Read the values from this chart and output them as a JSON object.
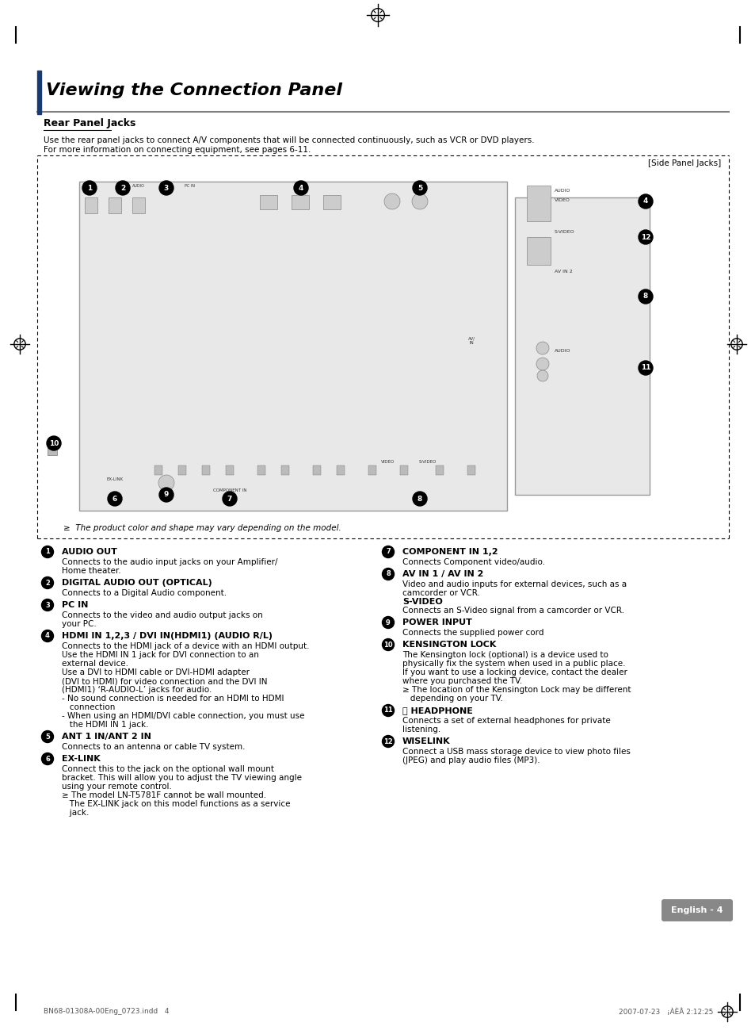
{
  "title": "Viewing the Connection Panel",
  "subtitle": "Rear Panel Jacks",
  "intro_text": "Use the rear panel jacks to connect A/V components that will be connected continuously, such as VCR or DVD players.\nFor more information on connecting equipment, see pages 6-11.",
  "side_panel_label": "[Side Panel Jacks]",
  "diagram_note": "≥  The product color and shape may vary depending on the model.",
  "items_left": [
    {
      "num": "1",
      "heading": "AUDIO OUT",
      "body": "Connects to the audio input jacks on your Amplifier/\nHome theater."
    },
    {
      "num": "2",
      "heading": "DIGITAL AUDIO OUT (OPTICAL)",
      "body": "Connects to a Digital Audio component."
    },
    {
      "num": "3",
      "heading": "PC IN",
      "body": "Connects to the video and audio output jacks on\nyour PC."
    },
    {
      "num": "4",
      "heading": "HDMI IN 1,2,3 / DVI IN(HDMI1) (AUDIO R/L)",
      "body": "Connects to the HDMI jack of a device with an HDMI output.\nUse the HDMI IN 1 jack for DVI connection to an\nexternal device.\nUse a DVI to HDMI cable or DVI-HDMI adapter\n(DVI to HDMI) for video connection and the DVI IN\n(HDMI1) ‘R-AUDIO-L’ jacks for audio.\n- No sound connection is needed for an HDMI to HDMI\n   connection\n- When using an HDMI/DVI cable connection, you must use\n   the HDMI IN 1 jack."
    },
    {
      "num": "5",
      "heading": "ANT 1 IN/ANT 2 IN",
      "body": "Connects to an antenna or cable TV system."
    },
    {
      "num": "6",
      "heading": "EX-LINK",
      "body": "Connect this to the jack on the optional wall mount\nbracket. This will allow you to adjust the TV viewing angle\nusing your remote control.\n≥ The model LN-T5781F cannot be wall mounted.\n   The EX-LINK jack on this model functions as a service\n   jack."
    }
  ],
  "items_right": [
    {
      "num": "7",
      "heading": "COMPONENT IN 1,2",
      "body": "Connects Component video/audio."
    },
    {
      "num": "8",
      "heading": "AV IN 1 / AV IN 2",
      "body": "Video and audio inputs for external devices, such as a\ncamcorder or VCR.\nS-VIDEO\nConnects an S-Video signal from a camcorder or VCR."
    },
    {
      "num": "9",
      "heading": "POWER INPUT",
      "body": "Connects the supplied power cord"
    },
    {
      "num": "10",
      "heading": "KENSINGTON LOCK",
      "body": "The Kensington lock (optional) is a device used to\nphysically fix the system when used in a public place.\nIf you want to use a locking device, contact the dealer\nwhere you purchased the TV.\n≥ The location of the Kensington Lock may be different\n   depending on your TV."
    },
    {
      "num": "11",
      "heading": "ⓘ HEADPHONE",
      "body": "Connects a set of external headphones for private\nlistening."
    },
    {
      "num": "12",
      "heading": "WISELINK",
      "body": "Connect a USB mass storage device to view photo files\n(JPEG) and play audio files (MP3)."
    }
  ],
  "footer_left": "BN68-01308A-00Eng_0723.indd   4",
  "footer_right": "2007-07-23   ¡ÀÈÂ 2:12:25",
  "english_label": "English - 4",
  "bg_color": "#ffffff",
  "text_color": "#000000",
  "heading_color": "#000000"
}
